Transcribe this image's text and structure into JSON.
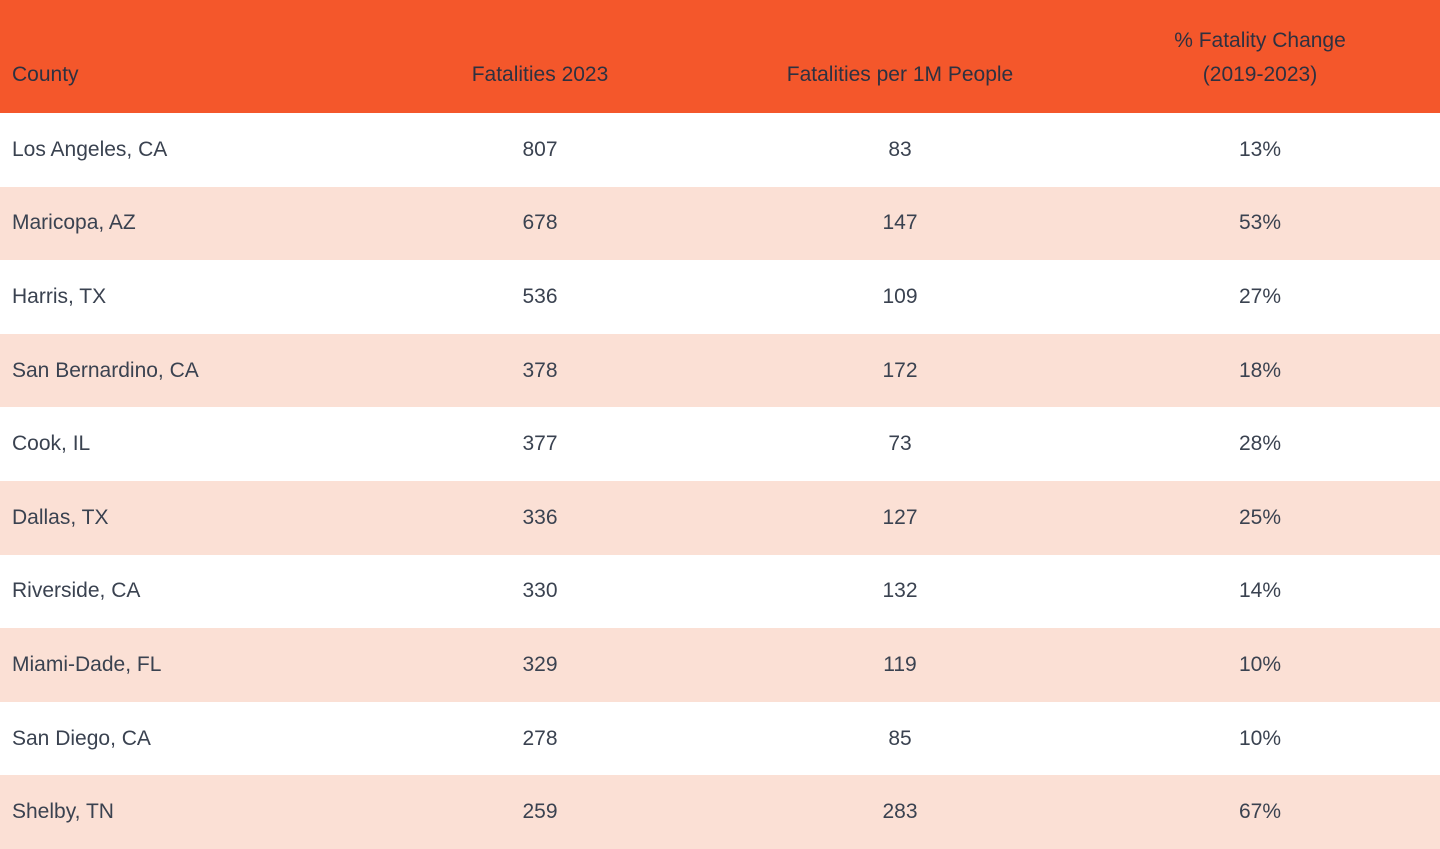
{
  "header": {
    "col1": "County",
    "col2": "Fatalities 2023",
    "col3": "Fatalities per 1M People",
    "col4": "% Fatality Change\n(2019-2023)"
  },
  "colors": {
    "header_bg": "#F4572B",
    "alt_row_bg": "#FBE0D5",
    "row_bg": "#FFFFFF",
    "body_text": "#3A4250",
    "header_text": "#2E3140"
  },
  "chart_data": {
    "type": "table",
    "columns": [
      "County",
      "Fatalities 2023",
      "Fatalities per 1M People",
      "% Fatality Change (2019-2023)"
    ],
    "rows": [
      {
        "county": "Los Angeles, CA",
        "fatalities_2023": 807,
        "fatalities_per_1m": 83,
        "pct_change_2019_2023": "13%"
      },
      {
        "county": "Maricopa, AZ",
        "fatalities_2023": 678,
        "fatalities_per_1m": 147,
        "pct_change_2019_2023": "53%"
      },
      {
        "county": "Harris, TX",
        "fatalities_2023": 536,
        "fatalities_per_1m": 109,
        "pct_change_2019_2023": "27%"
      },
      {
        "county": "San Bernardino, CA",
        "fatalities_2023": 378,
        "fatalities_per_1m": 172,
        "pct_change_2019_2023": "18%"
      },
      {
        "county": "Cook, IL",
        "fatalities_2023": 377,
        "fatalities_per_1m": 73,
        "pct_change_2019_2023": "28%"
      },
      {
        "county": "Dallas, TX",
        "fatalities_2023": 336,
        "fatalities_per_1m": 127,
        "pct_change_2019_2023": "25%"
      },
      {
        "county": "Riverside, CA",
        "fatalities_2023": 330,
        "fatalities_per_1m": 132,
        "pct_change_2019_2023": "14%"
      },
      {
        "county": "Miami-Dade, FL",
        "fatalities_2023": 329,
        "fatalities_per_1m": 119,
        "pct_change_2019_2023": "10%"
      },
      {
        "county": "San Diego, CA",
        "fatalities_2023": 278,
        "fatalities_per_1m": 85,
        "pct_change_2019_2023": "10%"
      },
      {
        "county": "Shelby, TN",
        "fatalities_2023": 259,
        "fatalities_per_1m": 283,
        "pct_change_2019_2023": "67%"
      }
    ]
  }
}
